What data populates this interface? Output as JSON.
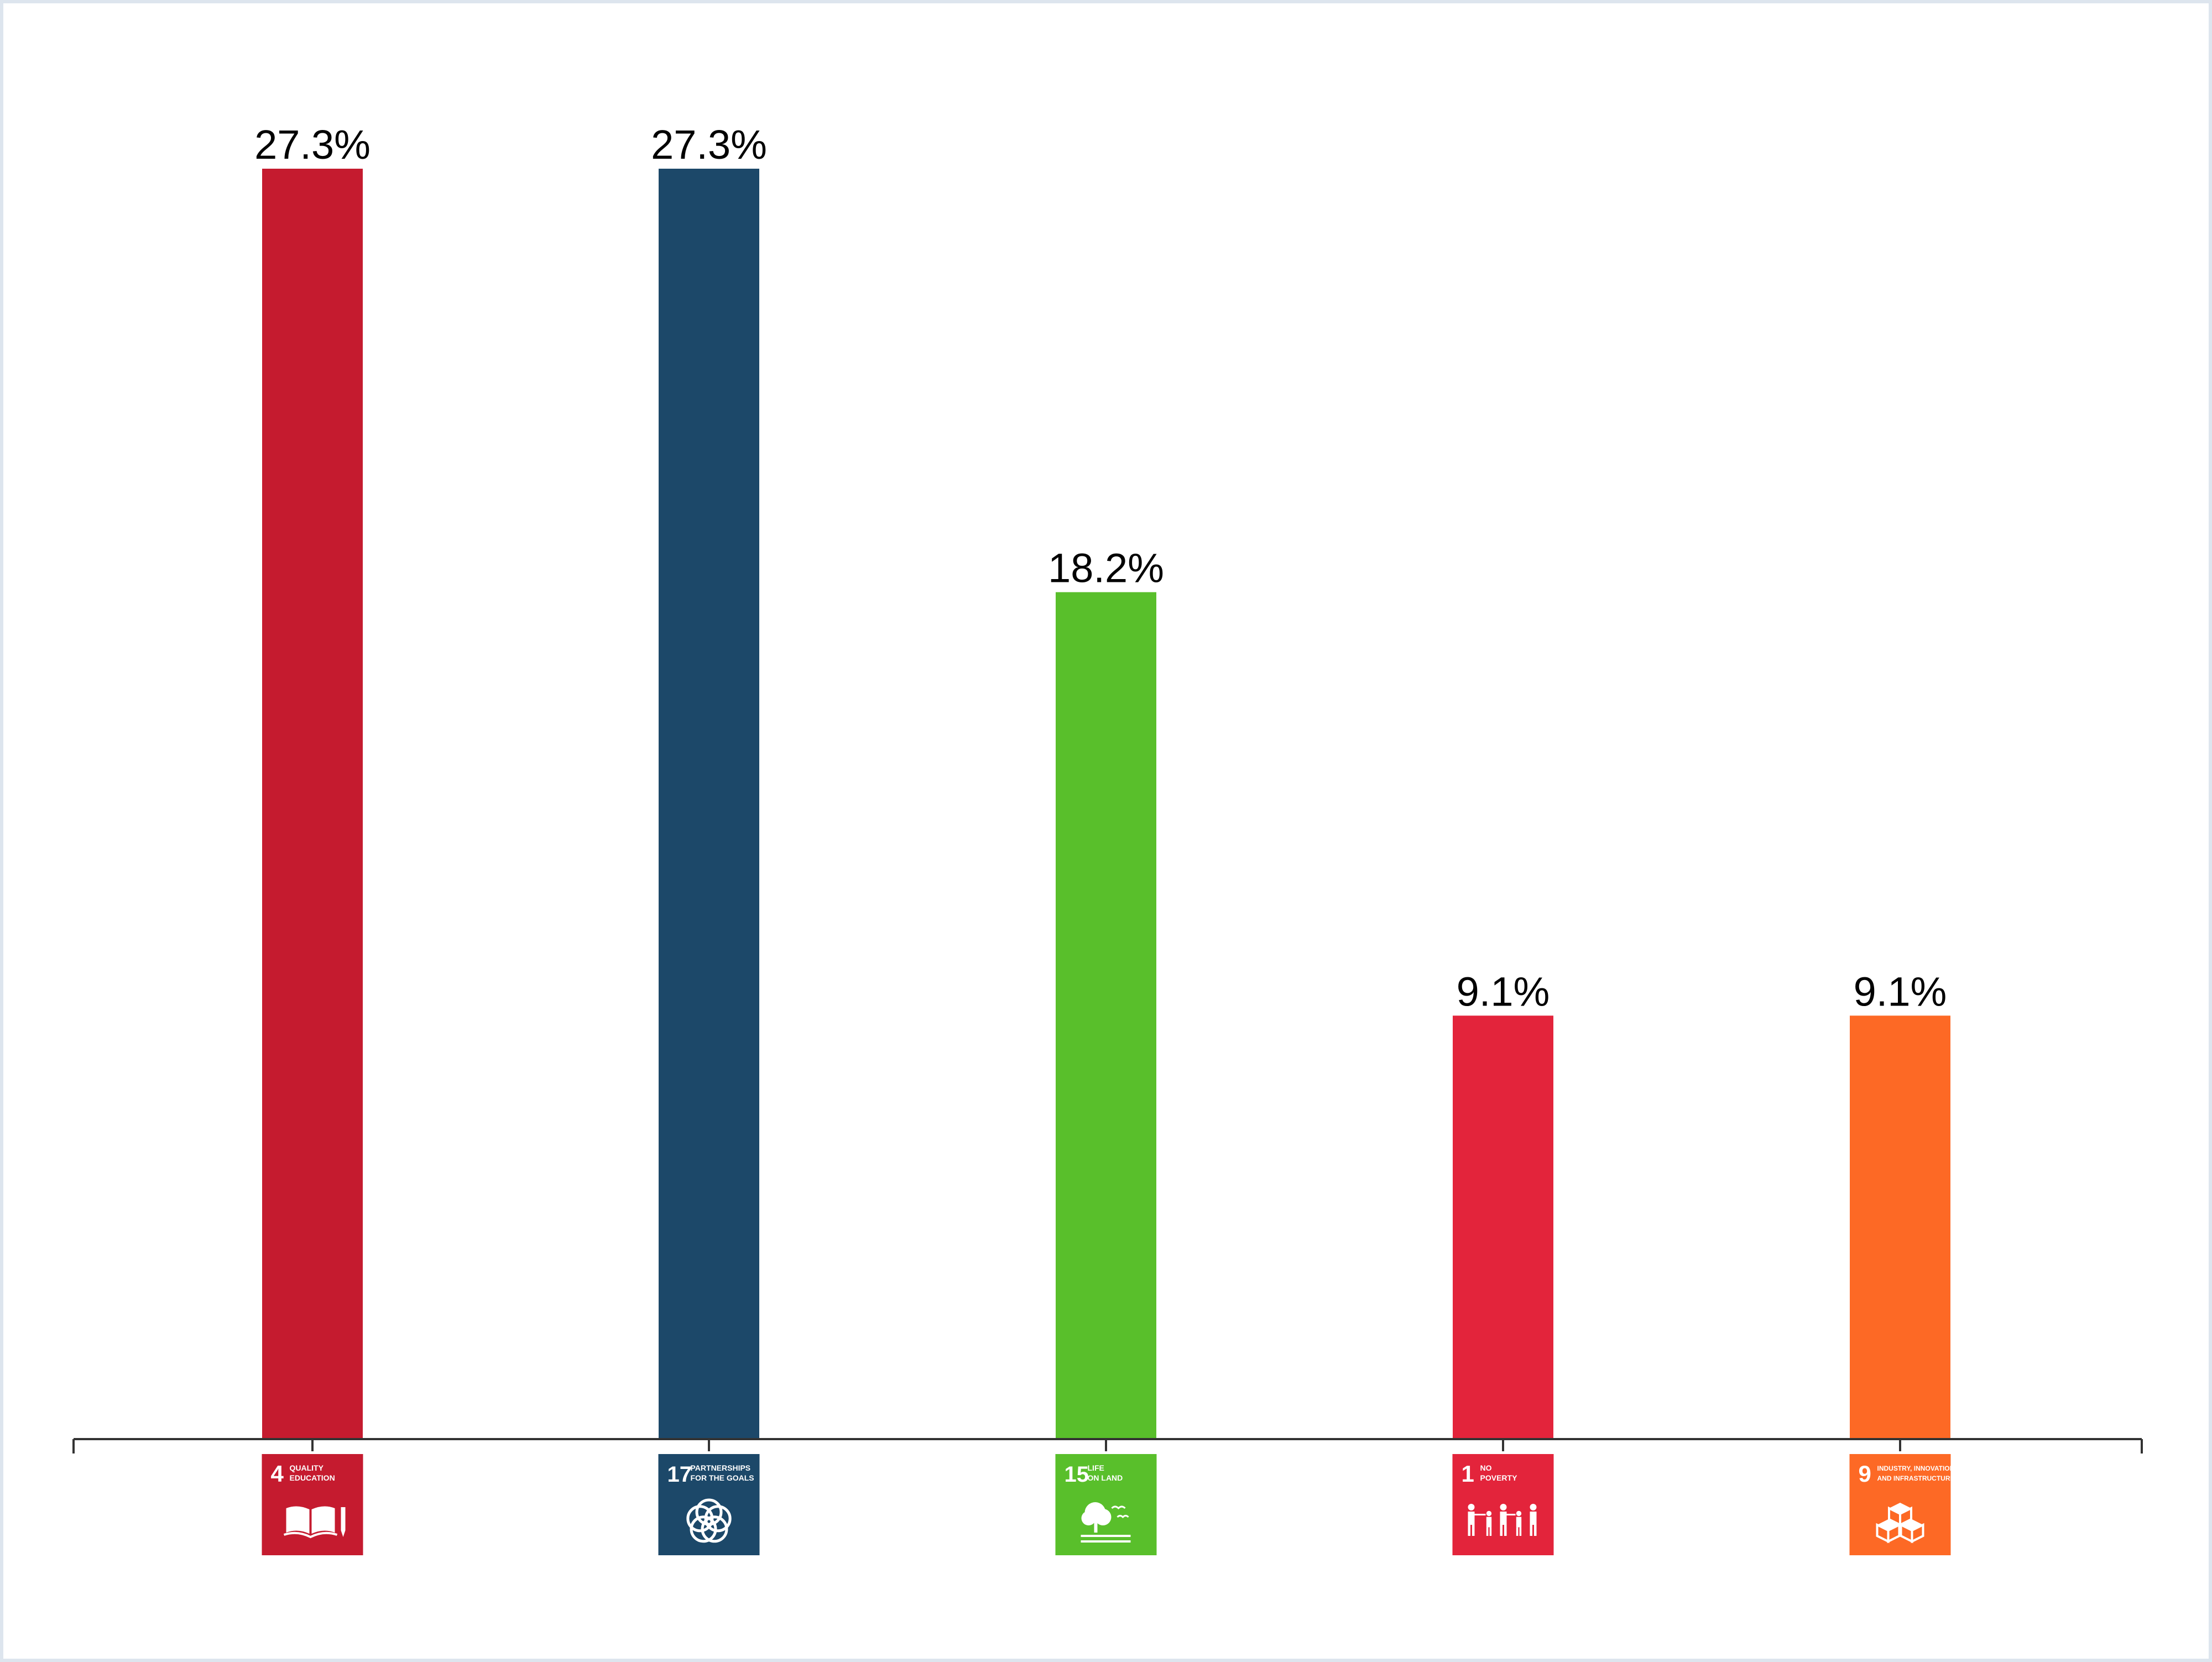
{
  "chart_data": {
    "type": "bar",
    "title": "",
    "xlabel": "",
    "ylabel": "",
    "ylim": [
      0,
      27.3
    ],
    "grid": false,
    "value_suffix": "%",
    "categories": [
      {
        "number": "4",
        "line1": "QUALITY",
        "line2": "EDUCATION",
        "icon": "book-pencil-icon",
        "color": "#c51b2f"
      },
      {
        "number": "17",
        "line1": "PARTNERSHIPS",
        "line2": "FOR THE GOALS",
        "icon": "flower-rings-icon",
        "color": "#1c4869"
      },
      {
        "number": "15",
        "line1": "LIFE",
        "line2": "ON LAND",
        "icon": "tree-birds-icon",
        "color": "#59bf2b"
      },
      {
        "number": "1",
        "line1": "NO",
        "line2": "POVERTY",
        "icon": "family-icon",
        "color": "#e3243b"
      },
      {
        "number": "9",
        "line1": "INDUSTRY, INNOVATION",
        "line2": "AND INFRASTRUCTURE",
        "icon": "cubes-icon",
        "color": "#fd6925"
      }
    ],
    "values": [
      27.3,
      27.3,
      18.2,
      9.1,
      9.1
    ],
    "labels": [
      "27.3%",
      "27.3%",
      "18.2%",
      "9.1%",
      "9.1%"
    ]
  }
}
